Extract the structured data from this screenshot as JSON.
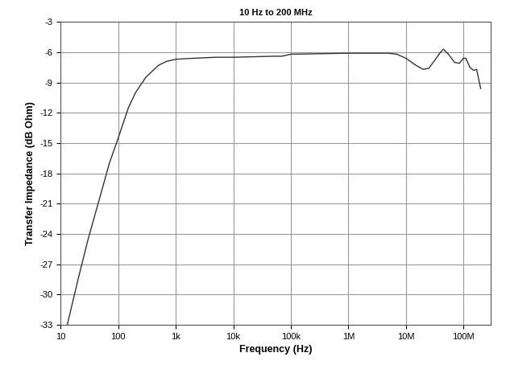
{
  "chart_data": {
    "type": "line",
    "title": "10 Hz to 200 MHz",
    "x_label": "Frequency (Hz)",
    "y_label": "Transfer Impedance (dB Ohm)",
    "x": [
      13,
      20,
      30,
      50,
      70,
      100,
      150,
      200,
      300,
      500,
      700,
      1000,
      2000,
      5000,
      10000,
      50000,
      70000,
      100000,
      1000000,
      5000000,
      7000000,
      10000000,
      15000000,
      20000000,
      25000000,
      30000000,
      40000000,
      45000000,
      55000000,
      70000000,
      85000000,
      100000000,
      110000000,
      130000000,
      150000000,
      170000000,
      200000000
    ],
    "values": [
      -33,
      -28.5,
      -24.5,
      -20,
      -17,
      -14.5,
      -11.5,
      -10,
      -8.5,
      -7.3,
      -6.9,
      -6.7,
      -6.6,
      -6.5,
      -6.5,
      -6.4,
      -6.4,
      -6.2,
      -6.1,
      -6.1,
      -6.2,
      -6.6,
      -7.3,
      -7.7,
      -7.6,
      -7.0,
      -6.0,
      -5.7,
      -6.2,
      -7.0,
      -7.1,
      -6.6,
      -6.6,
      -7.5,
      -7.8,
      -7.7,
      -9.6
    ],
    "color": "#333333",
    "log": "x",
    "grid": true,
    "xlim": [
      10,
      300000000
    ],
    "xticks": [
      10,
      100,
      {
        "value": 1000,
        "label": "1k"
      },
      {
        "value": 10000,
        "label": "10k"
      },
      {
        "value": 100000,
        "label": "100k"
      },
      {
        "value": 1000000,
        "label": "1M"
      },
      {
        "value": 10000000,
        "label": "10M"
      },
      {
        "value": 100000000,
        "label": "100M"
      }
    ],
    "ylim": [
      -33,
      -3
    ],
    "yticks": [
      -33,
      -30,
      -27,
      -24,
      -21,
      -18,
      -15,
      -12,
      -9,
      -6,
      -3
    ]
  }
}
